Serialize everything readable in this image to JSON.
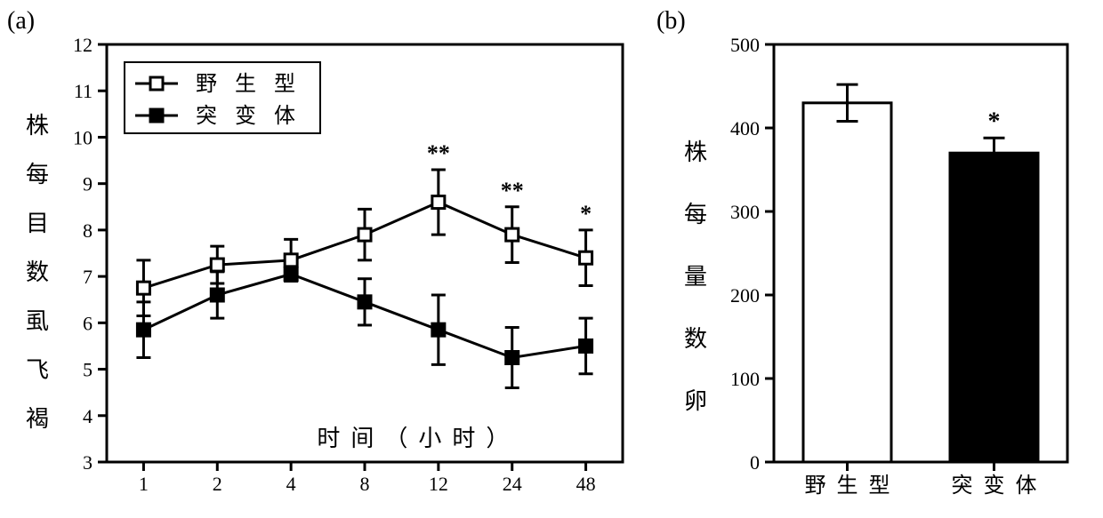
{
  "panel_a": {
    "label": "(a)",
    "type": "line",
    "x_categories": [
      "1",
      "2",
      "4",
      "8",
      "12",
      "24",
      "48"
    ],
    "ylim": [
      3,
      12
    ],
    "ytick_step": 1,
    "x_axis_inner_label": "时间（小时）",
    "y_axis_label_chars": [
      "褐",
      "飞",
      "虱",
      "数",
      "目",
      "每",
      "株"
    ],
    "series": [
      {
        "name": "野生型",
        "marker": "open-square",
        "marker_fill": "#ffffff",
        "marker_stroke": "#000000",
        "line_color": "#000000",
        "y": [
          6.75,
          7.25,
          7.35,
          7.9,
          8.6,
          7.9,
          7.4
        ],
        "err": [
          0.6,
          0.4,
          0.45,
          0.55,
          0.7,
          0.6,
          0.6
        ],
        "sig": [
          "",
          "",
          "",
          "",
          "**",
          "**",
          "*"
        ]
      },
      {
        "name": "突变体",
        "marker": "filled-square",
        "marker_fill": "#000000",
        "marker_stroke": "#000000",
        "line_color": "#000000",
        "y": [
          5.85,
          6.6,
          7.05,
          6.45,
          5.85,
          5.25,
          5.5
        ],
        "err": [
          0.6,
          0.5,
          0.15,
          0.5,
          0.75,
          0.65,
          0.6
        ],
        "sig": [
          "",
          "",
          "",
          "",
          "",
          "",
          ""
        ]
      }
    ],
    "legend_items": [
      "野生型",
      "突变体"
    ],
    "axis_color": "#000000",
    "tick_fontsize": 22,
    "label_fontsize": 26,
    "line_width": 3,
    "marker_size": 14,
    "background_color": "#ffffff"
  },
  "panel_b": {
    "label": "(b)",
    "type": "bar",
    "categories": [
      "野生型",
      "突变体"
    ],
    "values": [
      430,
      370
    ],
    "errors": [
      22,
      18
    ],
    "sig": [
      "",
      "*"
    ],
    "bar_fill": [
      "#ffffff",
      "#000000"
    ],
    "bar_stroke": "#000000",
    "ylim": [
      0,
      500
    ],
    "ytick_step": 100,
    "y_axis_label_chars": [
      "卵",
      "数",
      "量",
      "每",
      "株"
    ],
    "axis_color": "#000000",
    "tick_fontsize": 22,
    "label_fontsize": 26,
    "bar_width": 0.6,
    "line_width": 3,
    "background_color": "#ffffff"
  }
}
